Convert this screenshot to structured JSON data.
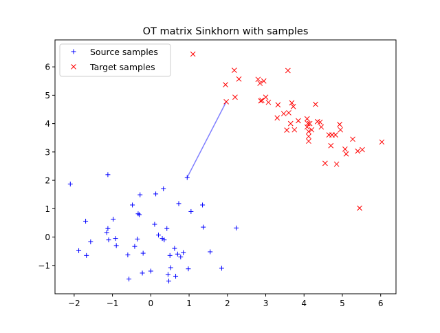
{
  "chart_data": {
    "type": "scatter",
    "title": "OT matrix Sinkhorn with samples",
    "xlabel": "",
    "ylabel": "",
    "xlim": [
      -2.5,
      6.4
    ],
    "ylim": [
      -2.0,
      6.95
    ],
    "xticks": [
      -2,
      -1,
      0,
      1,
      2,
      3,
      4,
      5,
      6
    ],
    "yticks": [
      -1,
      0,
      1,
      2,
      3,
      4,
      5,
      6
    ],
    "xtick_labels": [
      "−2",
      "−1",
      "0",
      "1",
      "2",
      "3",
      "4",
      "5",
      "6"
    ],
    "ytick_labels": [
      "−1",
      "0",
      "1",
      "2",
      "3",
      "4",
      "5",
      "6"
    ],
    "grid": false,
    "legend_position": "top-left",
    "series": [
      {
        "name": "Source samples",
        "marker": "plus",
        "color": "#0000ff",
        "points": [
          [
            -2.1,
            1.87
          ],
          [
            -1.88,
            -0.48
          ],
          [
            -1.7,
            0.56
          ],
          [
            -1.68,
            -0.65
          ],
          [
            -1.57,
            -0.17
          ],
          [
            -1.15,
            0.16
          ],
          [
            -1.12,
            2.2
          ],
          [
            -1.12,
            0.3
          ],
          [
            -1.1,
            -0.1
          ],
          [
            -0.98,
            0.63
          ],
          [
            -0.92,
            -0.05
          ],
          [
            -0.9,
            -0.3
          ],
          [
            -0.6,
            -0.63
          ],
          [
            -0.57,
            -1.48
          ],
          [
            -0.48,
            1.13
          ],
          [
            -0.42,
            -0.33
          ],
          [
            -0.35,
            -0.07
          ],
          [
            -0.33,
            0.82
          ],
          [
            -0.3,
            0.79
          ],
          [
            -0.28,
            1.49
          ],
          [
            -0.22,
            -1.27
          ],
          [
            -0.2,
            -0.57
          ],
          [
            0.0,
            -1.2
          ],
          [
            0.1,
            0.45
          ],
          [
            0.13,
            1.52
          ],
          [
            0.2,
            0.07
          ],
          [
            0.3,
            -0.05
          ],
          [
            0.33,
            1.7
          ],
          [
            0.35,
            -0.1
          ],
          [
            0.42,
            0.3
          ],
          [
            0.45,
            -1.32
          ],
          [
            0.47,
            -1.55
          ],
          [
            0.5,
            -0.65
          ],
          [
            0.52,
            -1.08
          ],
          [
            0.62,
            -0.4
          ],
          [
            0.65,
            -1.38
          ],
          [
            0.7,
            -0.6
          ],
          [
            0.73,
            1.18
          ],
          [
            0.78,
            -0.7
          ],
          [
            0.85,
            -0.55
          ],
          [
            0.95,
            2.1
          ],
          [
            0.98,
            -1.12
          ],
          [
            1.05,
            0.9
          ],
          [
            1.35,
            1.13
          ],
          [
            1.37,
            0.35
          ],
          [
            1.55,
            -0.52
          ],
          [
            1.85,
            -1.1
          ],
          [
            2.23,
            0.32
          ]
        ]
      },
      {
        "name": "Target samples",
        "marker": "x",
        "color": "#ff0000",
        "points": [
          [
            1.1,
            6.45
          ],
          [
            1.95,
            5.37
          ],
          [
            1.97,
            4.77
          ],
          [
            2.18,
            5.88
          ],
          [
            2.2,
            4.93
          ],
          [
            2.3,
            5.57
          ],
          [
            2.8,
            5.56
          ],
          [
            2.85,
            5.42
          ],
          [
            2.87,
            4.8
          ],
          [
            2.9,
            4.82
          ],
          [
            2.95,
            5.5
          ],
          [
            3.0,
            4.93
          ],
          [
            3.07,
            4.75
          ],
          [
            3.3,
            4.2
          ],
          [
            3.32,
            4.66
          ],
          [
            3.47,
            4.35
          ],
          [
            3.55,
            3.77
          ],
          [
            3.58,
            5.87
          ],
          [
            3.6,
            4.38
          ],
          [
            3.65,
            4.0
          ],
          [
            3.68,
            4.73
          ],
          [
            3.72,
            4.6
          ],
          [
            3.75,
            3.78
          ],
          [
            3.85,
            4.1
          ],
          [
            4.08,
            3.88
          ],
          [
            4.08,
            4.17
          ],
          [
            4.1,
            4.0
          ],
          [
            4.12,
            3.72
          ],
          [
            4.12,
            3.55
          ],
          [
            4.12,
            3.38
          ],
          [
            4.15,
            4.0
          ],
          [
            4.2,
            3.78
          ],
          [
            4.3,
            4.68
          ],
          [
            4.35,
            4.07
          ],
          [
            4.42,
            4.05
          ],
          [
            4.45,
            3.88
          ],
          [
            4.55,
            2.6
          ],
          [
            4.65,
            3.6
          ],
          [
            4.7,
            3.22
          ],
          [
            4.73,
            3.6
          ],
          [
            4.82,
            3.6
          ],
          [
            4.85,
            2.57
          ],
          [
            4.93,
            3.97
          ],
          [
            4.95,
            3.78
          ],
          [
            5.07,
            3.1
          ],
          [
            5.1,
            2.93
          ],
          [
            5.27,
            3.45
          ],
          [
            5.4,
            3.03
          ],
          [
            5.45,
            1.02
          ],
          [
            5.52,
            3.08
          ],
          [
            6.03,
            3.35
          ]
        ]
      }
    ],
    "connections": [
      {
        "from": [
          0.95,
          2.1
        ],
        "to": [
          1.97,
          4.77
        ],
        "color": "#8080ff"
      }
    ]
  }
}
